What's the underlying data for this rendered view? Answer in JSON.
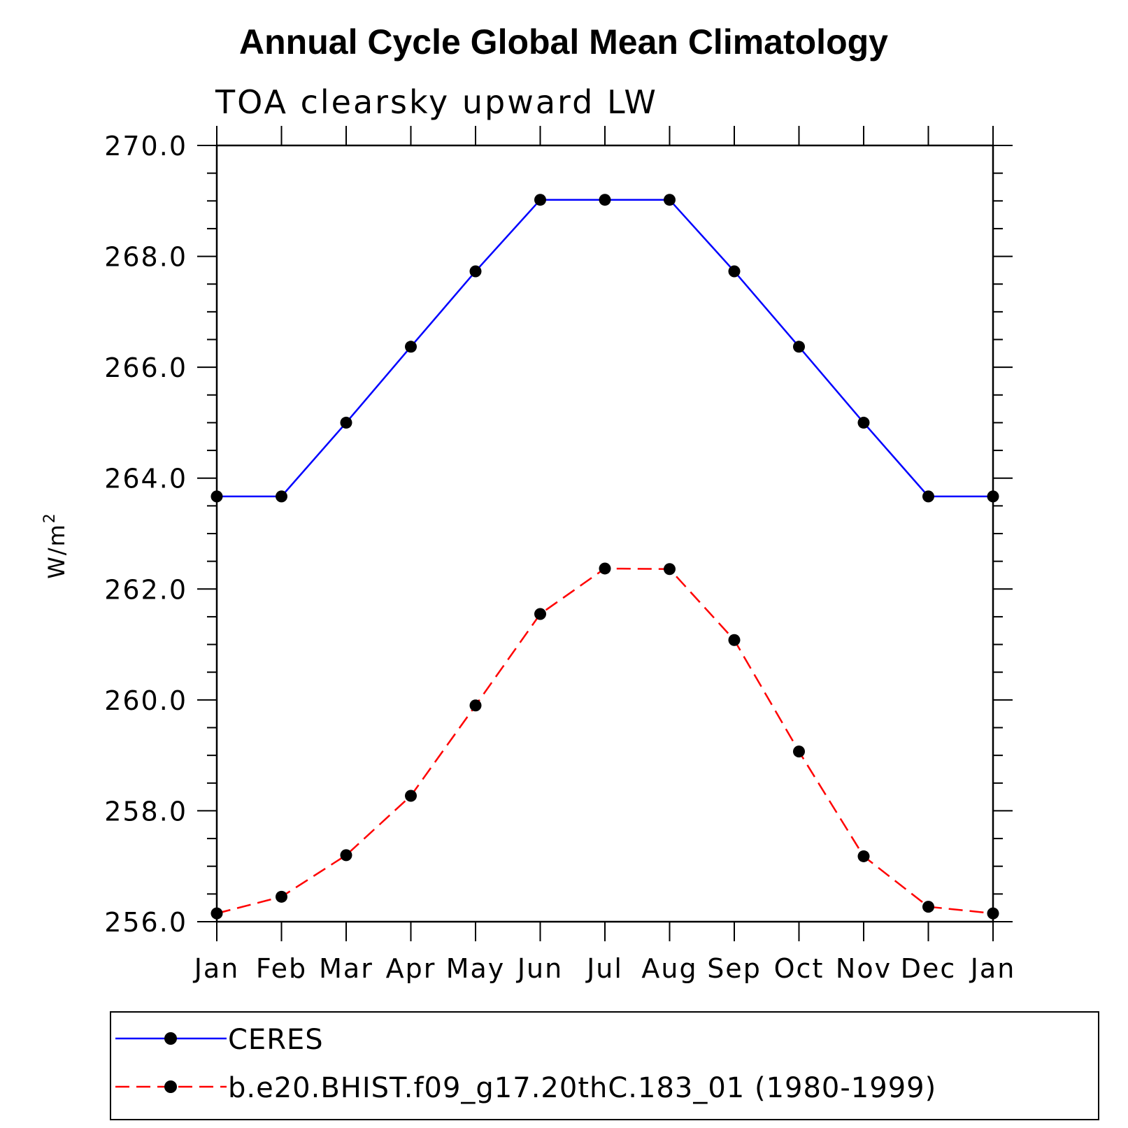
{
  "chart_data": {
    "type": "line",
    "title": "Annual Cycle Global Mean Climatology",
    "subtitle": "TOA clearsky upward LW",
    "ylabel": "W/m",
    "ylabel_superscript": "2",
    "categories": [
      "Jan",
      "Feb",
      "Mar",
      "Apr",
      "May",
      "Jun",
      "Jul",
      "Aug",
      "Sep",
      "Oct",
      "Nov",
      "Dec",
      "Jan"
    ],
    "ylim": [
      256.0,
      270.0
    ],
    "yticks": [
      "256.0",
      "258.0",
      "260.0",
      "262.0",
      "264.0",
      "266.0",
      "268.0",
      "270.0"
    ],
    "grid": false,
    "legend_position": "bottom",
    "series": [
      {
        "name": "CERES",
        "color": "#0000ff",
        "line_style": "solid",
        "marker": "filled-circle",
        "values": [
          263.67,
          263.67,
          265.0,
          266.37,
          267.73,
          269.02,
          269.02,
          269.02,
          267.73,
          266.37,
          265.0,
          263.67,
          263.67
        ]
      },
      {
        "name": "b.e20.BHIST.f09_g17.20thC.183_01 (1980-1999)",
        "color": "#ff0000",
        "line_style": "dashed",
        "marker": "filled-circle",
        "values": [
          256.15,
          256.45,
          257.2,
          258.27,
          259.9,
          261.55,
          262.37,
          262.36,
          261.08,
          259.07,
          257.18,
          256.27,
          256.15
        ]
      }
    ]
  }
}
